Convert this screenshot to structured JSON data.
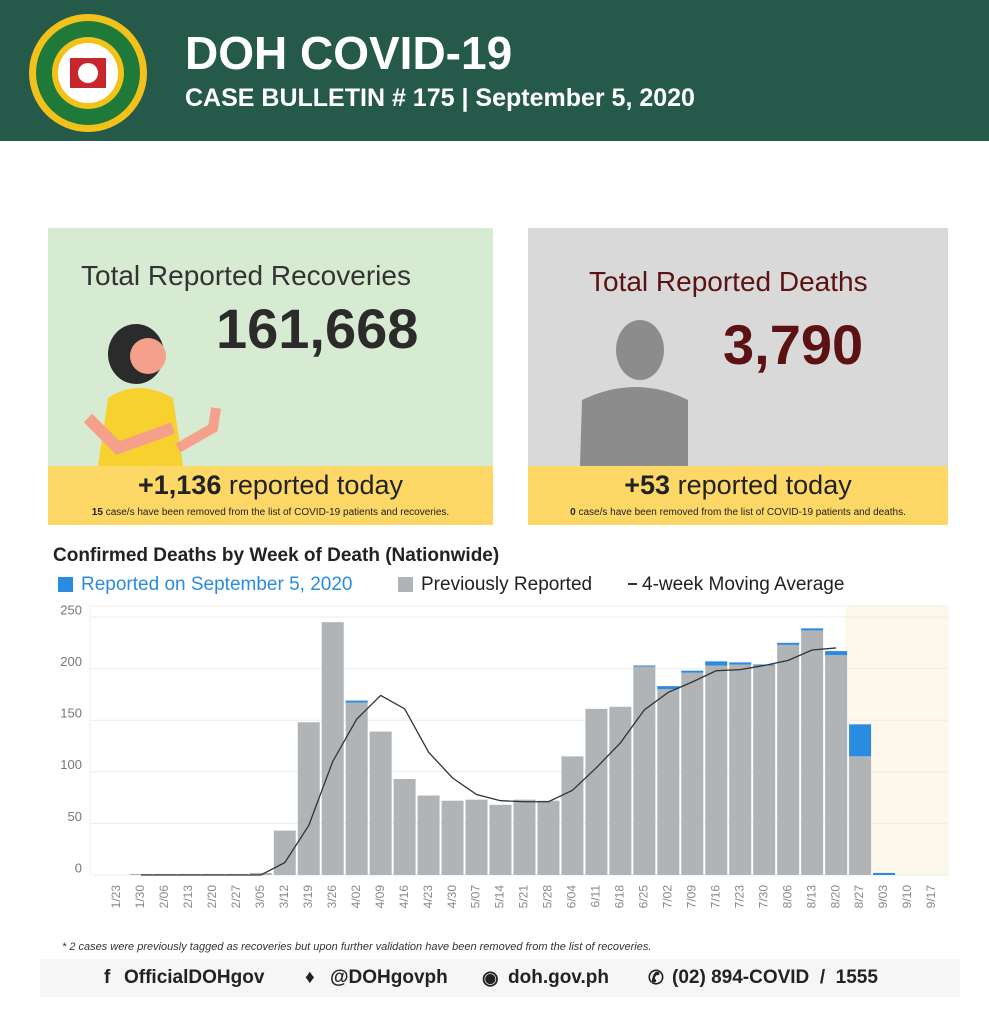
{
  "header": {
    "title": "DOH COVID-19",
    "subtitle": "CASE BULLETIN # 175 | September 5, 2020"
  },
  "recoveries": {
    "title": "Total Reported Recoveries",
    "total": "161,668",
    "today_value": "+1,136",
    "today_text": "reported today",
    "note_count": "15",
    "note_text": "case/s have been removed from the list of COVID-19 patients and recoveries."
  },
  "deaths": {
    "title": "Total Reported Deaths",
    "total": "3,790",
    "today_value": "+53",
    "today_text": "reported today",
    "note_count": "0",
    "note_text": "case/s have been removed from the list of COVID-19 patients and deaths."
  },
  "chart_data": {
    "type": "stacked_bar_line",
    "title": "Confirmed Deaths by Week of Death (Nationwide)",
    "categories": [
      "1/23",
      "1/30",
      "2/06",
      "2/13",
      "2/20",
      "2/27",
      "3/05",
      "3/12",
      "3/19",
      "3/26",
      "4/02",
      "4/09",
      "4/16",
      "4/23",
      "4/30",
      "5/07",
      "5/14",
      "5/21",
      "5/28",
      "6/04",
      "6/11",
      "6/18",
      "6/25",
      "7/02",
      "7/09",
      "7/16",
      "7/23",
      "7/30",
      "8/06",
      "8/13",
      "8/20",
      "8/27",
      "9/03",
      "9/10",
      "9/17"
    ],
    "series": [
      {
        "name": "Previously Reported",
        "color": "#b1b4b6",
        "values": [
          0,
          1,
          1,
          1,
          1,
          1,
          2,
          43,
          148,
          245,
          167,
          139,
          93,
          77,
          72,
          73,
          68,
          73,
          72,
          115,
          161,
          163,
          202,
          180,
          196,
          203,
          204,
          203,
          223,
          237,
          213,
          115,
          0,
          0,
          0
        ]
      },
      {
        "name": "Reported on September 5, 2020",
        "color": "#2a8ce0",
        "values": [
          0,
          0,
          0,
          0,
          0,
          0,
          0,
          0,
          0,
          0,
          2,
          0,
          0,
          0,
          0,
          0,
          0,
          0,
          0,
          0,
          0,
          0,
          1,
          3,
          2,
          4,
          2,
          1,
          2,
          2,
          4,
          31,
          2,
          0,
          0
        ]
      },
      {
        "name": "4-week Moving Average",
        "color": "#333333",
        "type": "line",
        "values": [
          null,
          0,
          0,
          0,
          0,
          0,
          0,
          12,
          48,
          110,
          151,
          174,
          161,
          119,
          94,
          78,
          72,
          71,
          71,
          82,
          104,
          128,
          160,
          177,
          187,
          198,
          199,
          203,
          208,
          218,
          220,
          null,
          null,
          null,
          null
        ]
      }
    ],
    "ylim": [
      0,
      250
    ],
    "yticks": [
      0,
      50,
      100,
      150,
      200,
      250
    ],
    "grid": true
  },
  "footnote": "* 2 cases were previously tagged as recoveries but upon further validation have been removed from the list of recoveries.",
  "footer": {
    "facebook": "OfficialDOHgov",
    "twitter": "@DOHgovph",
    "web": "doh.gov.ph",
    "phone": "(02) 894-COVID  /  1555"
  }
}
